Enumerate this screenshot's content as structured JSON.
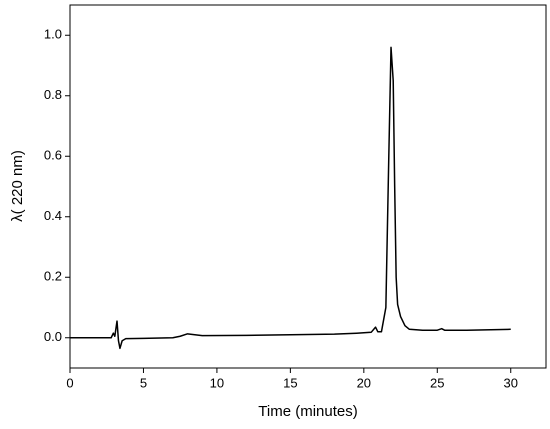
{
  "chart_data": {
    "type": "line",
    "x_label": "Time (minutes)",
    "y_label": "λ( 220 nm)",
    "xlim": [
      0,
      32.4
    ],
    "ylim": [
      -0.1,
      1.1
    ],
    "xticks": [
      0,
      5,
      10,
      15,
      20,
      25,
      30
    ],
    "yticks": [
      {
        "value": 0,
        "label": "0.0"
      },
      0.2,
      0.4,
      0.6,
      0.8,
      {
        "value": 1,
        "label": "1.0"
      }
    ],
    "grid": false,
    "series": [
      {
        "color": "#000000",
        "x": [
          0,
          2.8,
          2.95,
          3.05,
          3.2,
          3.3,
          3.4,
          3.55,
          3.8,
          5,
          7,
          7.5,
          8,
          8.5,
          9,
          12,
          15,
          18,
          19.5,
          20.5,
          20.8,
          20.95,
          21.2,
          21.5,
          21.7,
          21.85,
          22.0,
          22.1,
          22.2,
          22.3,
          22.5,
          22.8,
          23.1,
          24,
          25,
          25.3,
          25.5,
          27,
          30
        ],
        "values": [
          0,
          0,
          0.015,
          0.005,
          0.055,
          -0.01,
          -0.035,
          -0.01,
          -0.003,
          -0.002,
          0,
          0.005,
          0.013,
          0.01,
          0.007,
          0.008,
          0.01,
          0.012,
          0.015,
          0.018,
          0.035,
          0.02,
          0.02,
          0.1,
          0.6,
          0.96,
          0.85,
          0.5,
          0.2,
          0.11,
          0.07,
          0.04,
          0.028,
          0.025,
          0.025,
          0.03,
          0.025,
          0.025,
          0.028
        ]
      }
    ]
  }
}
